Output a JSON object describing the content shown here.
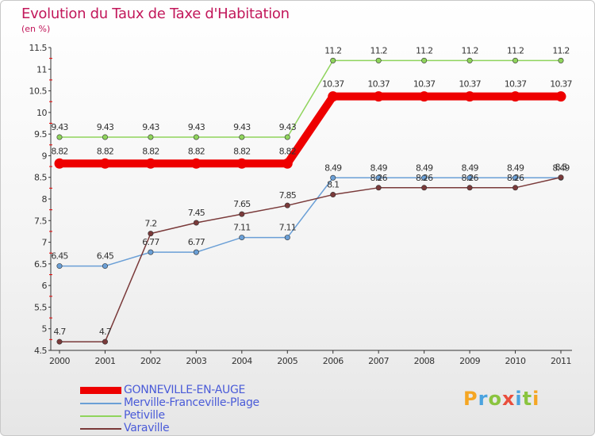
{
  "chart_data": {
    "type": "line",
    "title": "Evolution du Taux de Taxe d'Habitation",
    "ylabel": "(en %)",
    "xlabel": "",
    "categories": [
      "2000",
      "2001",
      "2002",
      "2003",
      "2004",
      "2005",
      "2006",
      "2007",
      "2008",
      "2009",
      "2010",
      "2011"
    ],
    "ylim": [
      4.5,
      11.5
    ],
    "yticks": [
      "4.5",
      "5",
      "5.5",
      "6",
      "6.5",
      "7",
      "7.5",
      "8",
      "8.5",
      "9",
      "9.5",
      "10",
      "10.5",
      "11",
      "11.5"
    ],
    "grid": false,
    "legend_position": "bottom-left",
    "series": [
      {
        "name": "GONNEVILLE-EN-AUGE",
        "values": [
          8.82,
          8.82,
          8.82,
          8.82,
          8.82,
          8.82,
          10.37,
          10.37,
          10.37,
          10.37,
          10.37,
          10.37
        ],
        "labels": [
          "8.82",
          "8.82",
          "8.82",
          "8.82",
          "8.82",
          "8.82",
          "10.37",
          "10.37",
          "10.37",
          "10.37",
          "10.37",
          "10.37"
        ],
        "color": "#ee0000"
      },
      {
        "name": "Merville-Franceville-Plage",
        "values": [
          6.45,
          6.45,
          6.77,
          6.77,
          7.11,
          7.11,
          8.49,
          8.49,
          8.49,
          8.49,
          8.49,
          8.49
        ],
        "labels": [
          "6.45",
          "6.45",
          "6.77",
          "6.77",
          "7.11",
          "7.11",
          "8.49",
          "8.49",
          "8.49",
          "8.49",
          "8.49",
          "8.49"
        ],
        "color": "#6a9fd6"
      },
      {
        "name": "Petiville",
        "values": [
          9.43,
          9.43,
          9.43,
          9.43,
          9.43,
          9.43,
          11.2,
          11.2,
          11.2,
          11.2,
          11.2,
          11.2
        ],
        "labels": [
          "9.43",
          "9.43",
          "9.43",
          "9.43",
          "9.43",
          "9.43",
          "11.2",
          "11.2",
          "11.2",
          "11.2",
          "11.2",
          "11.2"
        ],
        "color": "#8fd45c"
      },
      {
        "name": "Varaville",
        "values": [
          4.7,
          4.7,
          7.2,
          7.45,
          7.65,
          7.85,
          8.1,
          8.26,
          8.26,
          8.26,
          8.26,
          8.5
        ],
        "labels": [
          "4.7",
          "4.7",
          "7.2",
          "7.45",
          "7.65",
          "7.85",
          "8.1",
          "8.26",
          "8.26",
          "8.26",
          "8.26",
          "8.5"
        ],
        "color": "#7a3a3a"
      }
    ]
  },
  "logo": {
    "text": "Proxiti",
    "colors": [
      "#f5a623",
      "#4aa3df",
      "#8ac43f",
      "#e94e3c",
      "#4aa3df",
      "#8ac43f",
      "#f5a623"
    ]
  }
}
